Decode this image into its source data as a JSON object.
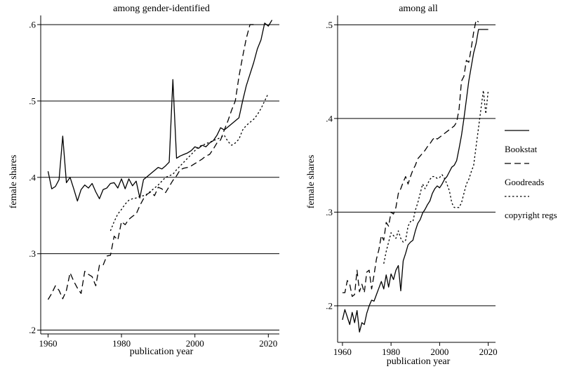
{
  "chart_data": [
    {
      "type": "line",
      "title": "among gender-identified",
      "xlabel": "publication year",
      "ylabel": "female shares",
      "xlim": [
        1958,
        2023
      ],
      "ylim": [
        0.195,
        0.612
      ],
      "x_ticks": [
        1960,
        1980,
        2000,
        2020
      ],
      "y_ticks": [
        0.2,
        0.3,
        0.4,
        0.5,
        0.6
      ],
      "y_tick_labels": [
        ".2",
        ".3",
        ".4",
        ".5",
        ".6"
      ],
      "grid": "horizontal",
      "series": [
        {
          "name": "Bookstat",
          "dash": "solid",
          "x": [
            1960,
            1961,
            1962,
            1963,
            1964,
            1965,
            1966,
            1967,
            1968,
            1969,
            1970,
            1971,
            1972,
            1973,
            1974,
            1975,
            1976,
            1977,
            1978,
            1979,
            1980,
            1981,
            1982,
            1983,
            1984,
            1985,
            1986,
            1987,
            1988,
            1989,
            1990,
            1991,
            1992,
            1993,
            1994,
            1995,
            1996,
            1997,
            1998,
            1999,
            2000,
            2001,
            2002,
            2003,
            2004,
            2005,
            2006,
            2007,
            2008,
            2009,
            2010,
            2011,
            2012,
            2013,
            2014,
            2015,
            2016,
            2017,
            2018,
            2019,
            2020,
            2021
          ],
          "values": [
            0.408,
            0.385,
            0.388,
            0.397,
            0.454,
            0.393,
            0.4,
            0.385,
            0.369,
            0.384,
            0.39,
            0.386,
            0.392,
            0.381,
            0.372,
            0.384,
            0.386,
            0.392,
            0.393,
            0.386,
            0.398,
            0.385,
            0.398,
            0.389,
            0.395,
            0.373,
            0.397,
            0.401,
            0.405,
            0.409,
            0.413,
            0.411,
            0.415,
            0.42,
            0.528,
            0.425,
            0.428,
            0.43,
            0.432,
            0.435,
            0.44,
            0.438,
            0.442,
            0.44,
            0.445,
            0.448,
            0.455,
            0.465,
            0.462,
            0.466,
            0.47,
            0.474,
            0.478,
            0.5,
            0.52,
            0.535,
            0.55,
            0.568,
            0.58,
            0.602,
            0.598,
            0.606
          ]
        },
        {
          "name": "Goodreads",
          "dash": "long-dash",
          "x": [
            1960,
            1961,
            1962,
            1963,
            1964,
            1965,
            1966,
            1967,
            1968,
            1969,
            1970,
            1971,
            1972,
            1973,
            1974,
            1975,
            1976,
            1977,
            1978,
            1979,
            1980,
            1981,
            1982,
            1983,
            1984,
            1985,
            1986,
            1987,
            1988,
            1989,
            1990,
            1991,
            1992,
            1993,
            1994,
            1995,
            1996,
            1997,
            1998,
            1999,
            2000,
            2001,
            2002,
            2003,
            2004,
            2005,
            2006,
            2007,
            2008,
            2009,
            2010,
            2011,
            2012,
            2013,
            2014,
            2015,
            2016
          ],
          "values": [
            0.24,
            0.248,
            0.258,
            0.252,
            0.241,
            0.252,
            0.275,
            0.264,
            0.255,
            0.248,
            0.277,
            0.273,
            0.27,
            0.258,
            0.285,
            0.285,
            0.297,
            0.298,
            0.323,
            0.318,
            0.342,
            0.338,
            0.345,
            0.349,
            0.352,
            0.363,
            0.372,
            0.378,
            0.381,
            0.376,
            0.387,
            0.385,
            0.38,
            0.388,
            0.396,
            0.402,
            0.41,
            0.412,
            0.413,
            0.415,
            0.418,
            0.421,
            0.424,
            0.428,
            0.43,
            0.437,
            0.445,
            0.449,
            0.462,
            0.474,
            0.488,
            0.5,
            0.532,
            0.558,
            0.582,
            0.6,
            0.6
          ]
        },
        {
          "name": "copyright regs",
          "dash": "dotted",
          "x": [
            1977,
            1978,
            1979,
            1980,
            1981,
            1982,
            1983,
            1984,
            1985,
            1986,
            1987,
            1988,
            1989,
            1990,
            1991,
            1992,
            1993,
            1994,
            1995,
            1996,
            1997,
            1998,
            1999,
            2000,
            2001,
            2002,
            2003,
            2004,
            2005,
            2006,
            2007,
            2008,
            2009,
            2010,
            2011,
            2012,
            2013,
            2014,
            2015,
            2016,
            2017,
            2018,
            2019,
            2020
          ],
          "values": [
            0.33,
            0.342,
            0.352,
            0.358,
            0.365,
            0.37,
            0.372,
            0.373,
            0.375,
            0.376,
            0.378,
            0.382,
            0.386,
            0.39,
            0.395,
            0.4,
            0.402,
            0.404,
            0.41,
            0.415,
            0.42,
            0.425,
            0.43,
            0.435,
            0.44,
            0.442,
            0.444,
            0.446,
            0.448,
            0.45,
            0.452,
            0.455,
            0.447,
            0.442,
            0.445,
            0.45,
            0.462,
            0.468,
            0.472,
            0.476,
            0.482,
            0.49,
            0.5,
            0.51
          ]
        }
      ]
    },
    {
      "type": "line",
      "title": "among all",
      "xlabel": "publication year",
      "ylabel": "female shares",
      "xlim": [
        1958,
        2023
      ],
      "ylim": [
        0.161,
        0.51
      ],
      "x_ticks": [
        1960,
        1980,
        2000,
        2020
      ],
      "y_ticks": [
        0.2,
        0.3,
        0.4,
        0.5
      ],
      "y_tick_labels": [
        ".2",
        ".3",
        ".4",
        ".5"
      ],
      "grid": "horizontal",
      "series": [
        {
          "name": "Bookstat",
          "dash": "solid",
          "x": [
            1960,
            1961,
            1962,
            1963,
            1964,
            1965,
            1966,
            1967,
            1968,
            1969,
            1970,
            1971,
            1972,
            1973,
            1974,
            1975,
            1976,
            1977,
            1978,
            1979,
            1980,
            1981,
            1982,
            1983,
            1984,
            1985,
            1986,
            1987,
            1988,
            1989,
            1990,
            1991,
            1992,
            1993,
            1994,
            1995,
            1996,
            1997,
            1998,
            1999,
            2000,
            2001,
            2002,
            2003,
            2004,
            2005,
            2006,
            2007,
            2008,
            2009,
            2010,
            2011,
            2012,
            2013,
            2014,
            2015,
            2016,
            2017,
            2018,
            2019,
            2020
          ],
          "values": [
            0.185,
            0.196,
            0.188,
            0.18,
            0.193,
            0.182,
            0.195,
            0.172,
            0.182,
            0.18,
            0.192,
            0.2,
            0.206,
            0.205,
            0.212,
            0.219,
            0.226,
            0.218,
            0.233,
            0.22,
            0.234,
            0.228,
            0.238,
            0.243,
            0.216,
            0.248,
            0.256,
            0.265,
            0.268,
            0.27,
            0.28,
            0.288,
            0.292,
            0.299,
            0.303,
            0.308,
            0.312,
            0.32,
            0.325,
            0.328,
            0.326,
            0.33,
            0.335,
            0.338,
            0.343,
            0.348,
            0.35,
            0.355,
            0.368,
            0.382,
            0.4,
            0.42,
            0.44,
            0.455,
            0.47,
            0.48,
            0.495,
            0.495,
            0.495,
            0.495,
            0.495
          ]
        },
        {
          "name": "Goodreads",
          "dash": "long-dash",
          "x": [
            1960,
            1961,
            1962,
            1963,
            1964,
            1965,
            1966,
            1967,
            1968,
            1969,
            1970,
            1971,
            1972,
            1973,
            1974,
            1975,
            1976,
            1977,
            1978,
            1979,
            1980,
            1981,
            1982,
            1983,
            1984,
            1985,
            1986,
            1987,
            1988,
            1989,
            1990,
            1991,
            1992,
            1993,
            1994,
            1995,
            1996,
            1997,
            1998,
            1999,
            2000,
            2001,
            2002,
            2003,
            2004,
            2005,
            2006,
            2007,
            2008,
            2009,
            2010,
            2011,
            2012,
            2013,
            2014,
            2015,
            2016
          ],
          "values": [
            0.214,
            0.214,
            0.227,
            0.223,
            0.21,
            0.212,
            0.238,
            0.215,
            0.223,
            0.214,
            0.236,
            0.238,
            0.218,
            0.233,
            0.25,
            0.26,
            0.275,
            0.27,
            0.289,
            0.285,
            0.3,
            0.298,
            0.305,
            0.32,
            0.325,
            0.332,
            0.338,
            0.33,
            0.338,
            0.345,
            0.35,
            0.357,
            0.36,
            0.363,
            0.366,
            0.37,
            0.373,
            0.377,
            0.38,
            0.378,
            0.38,
            0.382,
            0.384,
            0.386,
            0.388,
            0.39,
            0.392,
            0.396,
            0.41,
            0.44,
            0.445,
            0.462,
            0.46,
            0.475,
            0.492,
            0.505,
            0.503
          ]
        },
        {
          "name": "copyright regs",
          "dash": "dotted",
          "x": [
            1977,
            1978,
            1979,
            1980,
            1981,
            1982,
            1983,
            1984,
            1985,
            1986,
            1987,
            1988,
            1989,
            1990,
            1991,
            1992,
            1993,
            1994,
            1995,
            1996,
            1997,
            1998,
            1999,
            2000,
            2001,
            2002,
            2003,
            2004,
            2005,
            2006,
            2007,
            2008,
            2009,
            2010,
            2011,
            2012,
            2013,
            2014,
            2015,
            2016,
            2017,
            2018,
            2019,
            2020
          ],
          "values": [
            0.245,
            0.258,
            0.268,
            0.278,
            0.275,
            0.272,
            0.28,
            0.272,
            0.268,
            0.27,
            0.285,
            0.29,
            0.29,
            0.302,
            0.31,
            0.32,
            0.33,
            0.325,
            0.33,
            0.335,
            0.338,
            0.338,
            0.336,
            0.337,
            0.34,
            0.336,
            0.33,
            0.323,
            0.31,
            0.305,
            0.305,
            0.305,
            0.31,
            0.32,
            0.33,
            0.335,
            0.343,
            0.35,
            0.37,
            0.39,
            0.41,
            0.43,
            0.405,
            0.43
          ]
        }
      ]
    }
  ],
  "legend": {
    "placement": "right",
    "items": [
      {
        "name": "Bookstat",
        "dash": "solid"
      },
      {
        "name": "Goodreads",
        "dash": "long-dash"
      },
      {
        "name": "copyright regs",
        "dash": "dotted"
      }
    ]
  }
}
